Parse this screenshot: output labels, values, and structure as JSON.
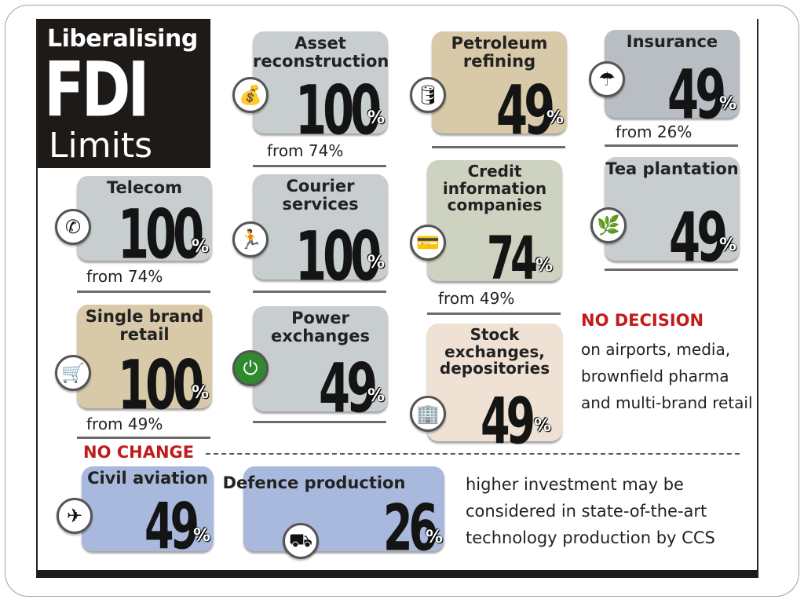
{
  "title": {
    "line1": "Liberalising",
    "line2": "FDI",
    "line3": "Limits"
  },
  "percent_sign": "%",
  "sectors": [
    {
      "id": "asset",
      "label": "Asset reconstruction",
      "limit": "100",
      "from": "from 74%",
      "icon": "money-bag-icon"
    },
    {
      "id": "petroleum",
      "label": "Petroleum refining",
      "limit": "49",
      "from": "",
      "icon": "oil-drop-icon"
    },
    {
      "id": "insurance",
      "label": "Insurance",
      "limit": "49",
      "from": "from 26%",
      "icon": "umbrella-icon"
    },
    {
      "id": "telecom",
      "label": "Telecom",
      "limit": "100",
      "from": "from 74%",
      "icon": "phone-icon"
    },
    {
      "id": "courier",
      "label": "Courier services",
      "limit": "100",
      "from": "",
      "icon": "runner-icon"
    },
    {
      "id": "credit",
      "label": "Credit information companies",
      "limit": "74",
      "from": "from 49%",
      "icon": "credit-card-icon"
    },
    {
      "id": "tea",
      "label": "Tea plantation",
      "limit": "49",
      "from": "",
      "icon": "tea-leaf-icon"
    },
    {
      "id": "single",
      "label": "Single brand retail",
      "limit": "100",
      "from": "from 49%",
      "icon": "cart-icon"
    },
    {
      "id": "power",
      "label": "Power exchanges",
      "limit": "49",
      "from": "",
      "icon": "plug-icon"
    },
    {
      "id": "stock",
      "label": "Stock exchanges, depositories",
      "limit": "49",
      "from": "",
      "icon": "building-icon"
    },
    {
      "id": "civil",
      "label": "Civil aviation",
      "limit": "49",
      "from": "",
      "icon": "airplane-icon"
    },
    {
      "id": "defence",
      "label": "Defence production",
      "limit": "26",
      "from": "",
      "icon": "tank-icon"
    }
  ],
  "no_decision": {
    "heading": "NO DECISION",
    "text": "on airports, media, brownfield pharma and multi-brand retail"
  },
  "no_change": {
    "heading": "NO CHANGE"
  },
  "note": "higher investment may be considered in state-of-the-art technology production by CCS"
}
